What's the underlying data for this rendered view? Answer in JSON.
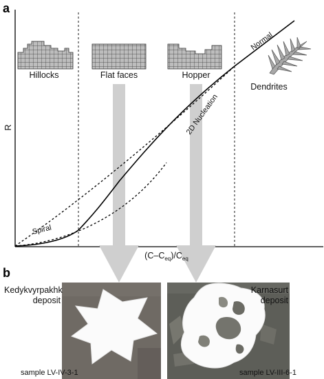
{
  "panel_a": {
    "letter": "a",
    "y_axis_label": "R",
    "x_axis_label_main": "(C–C",
    "x_axis_label_sub1": "eq",
    "x_axis_label_mid": ")/C",
    "x_axis_label_sub2": "eq",
    "regimes": {
      "hillocks": "Hillocks",
      "flat_faces": "Flat faces",
      "hopper": "Hopper",
      "dendrites": "Dendrites"
    },
    "curve_labels": {
      "spiral": "Spiral",
      "nucleation_2d": "2D Nucleation",
      "normal": "Normal"
    }
  },
  "panel_b": {
    "letter": "b",
    "left_deposit_line1": "Kedykvyrpakhk",
    "left_deposit_line2": "deposit",
    "right_deposit_line1": "Karnasurt",
    "right_deposit_line2": "deposit",
    "left_sample": "sample LV-IV-3-1",
    "right_sample": "sample LV-III-6-1"
  },
  "colors": {
    "arrow_gray": "#cfcfcf",
    "crystal_bg_left": "#6f6a64",
    "crystal_bg_right": "#5d5e58",
    "line": "#000000"
  }
}
